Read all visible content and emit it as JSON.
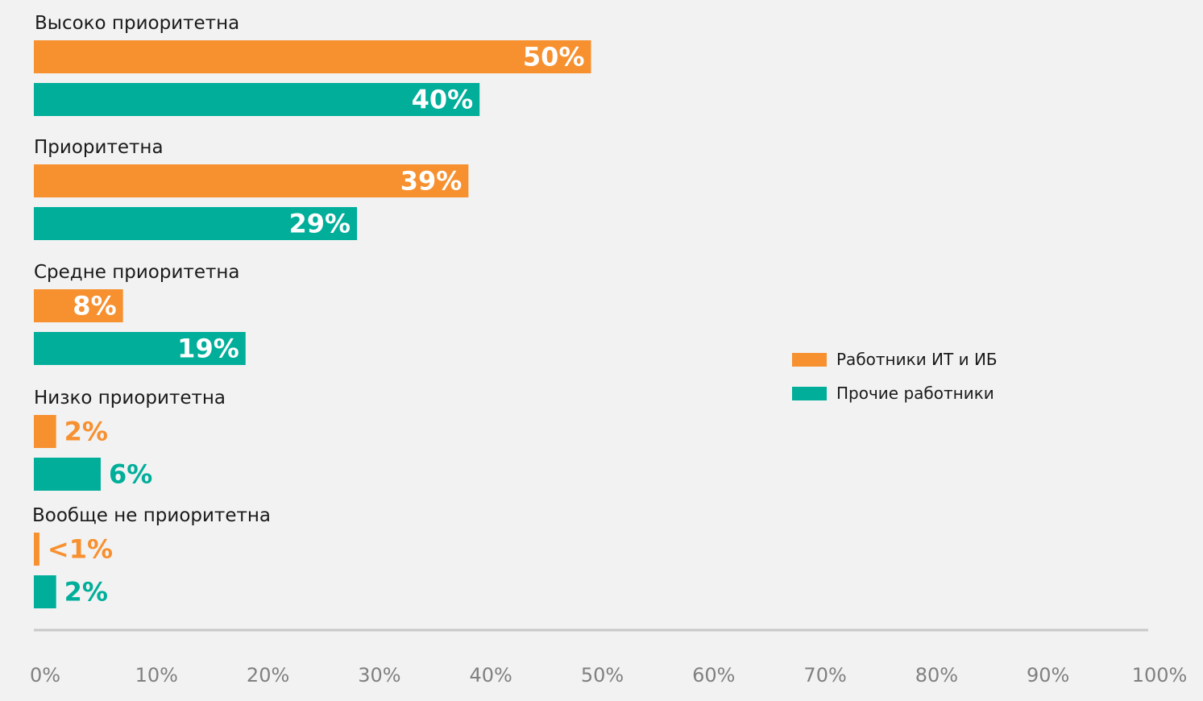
{
  "chart_data": {
    "type": "bar",
    "orientation": "horizontal",
    "categories": [
      "Высоко приоритетна",
      "Приоритетна",
      "Средне приоритетна",
      "Низко приоритетна",
      "Вообще не приоритетна"
    ],
    "series": [
      {
        "name": "Работники ИТ и ИБ",
        "color": "#f7902f",
        "values": [
          50,
          39,
          8,
          2,
          0.5
        ],
        "labels": [
          "50%",
          "39%",
          "8%",
          "2%",
          "<1%"
        ]
      },
      {
        "name": "Прочие работники",
        "color": "#00ae9a",
        "values": [
          40,
          29,
          19,
          6,
          2
        ],
        "labels": [
          "40%",
          "29%",
          "19%",
          "6%",
          "2%"
        ]
      }
    ],
    "xlim": [
      0,
      100
    ],
    "x_ticks": [
      "0%",
      "10%",
      "20%",
      "30%",
      "40%",
      "50%",
      "60%",
      "70%",
      "80%",
      "90%",
      "100%"
    ],
    "axis_color": "#c8c8c8",
    "legend_position": "right",
    "grid": false
  }
}
